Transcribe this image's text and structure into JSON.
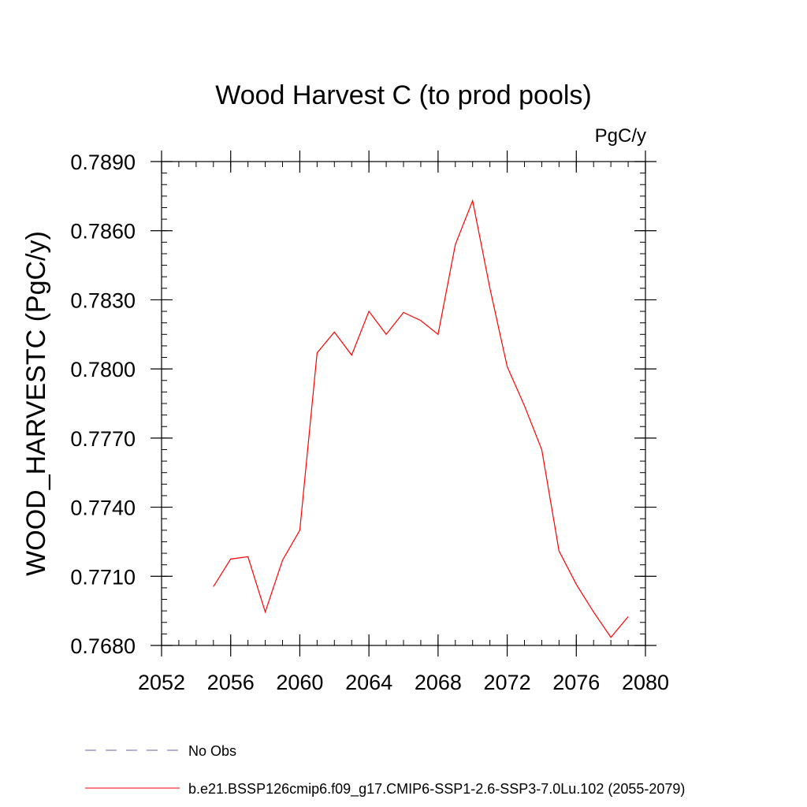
{
  "chart_data": {
    "type": "line",
    "title": "Wood Harvest C (to prod pools)",
    "units": "PgC/y",
    "xlabel": "",
    "ylabel": "WOOD_HARVESTC  (PgC/y)",
    "xlim": [
      2052,
      2080
    ],
    "ylim": [
      0.768,
      0.789
    ],
    "xticks": [
      "2052",
      "2056",
      "2060",
      "2064",
      "2068",
      "2072",
      "2076",
      "2080"
    ],
    "yticks": [
      "0.7680",
      "0.7710",
      "0.7740",
      "0.7770",
      "0.7800",
      "0.7830",
      "0.7860",
      "0.7890"
    ],
    "x_minor_step": 1,
    "y_minor_step": 0.0005,
    "grid": false,
    "legend_placement": "bottom",
    "series": [
      {
        "name": "b.e21.BSSP126cmip6.f09_g17.CMIP6-SSP1-2.6-SSP3-7.0Lu.102 (2055-2079)",
        "color": "#ff0000",
        "x": [
          2055,
          2056,
          2057,
          2058,
          2059,
          2060,
          2061,
          2062,
          2063,
          2064,
          2065,
          2066,
          2067,
          2068,
          2069,
          2070,
          2071,
          2072,
          2073,
          2074,
          2075,
          2076,
          2077,
          2078,
          2079
        ],
        "values": [
          0.77055,
          0.77175,
          0.77185,
          0.76945,
          0.7717,
          0.773,
          0.7807,
          0.7816,
          0.7806,
          0.7825,
          0.7815,
          0.78245,
          0.7821,
          0.7815,
          0.7854,
          0.7873,
          0.7835,
          0.7801,
          0.7784,
          0.7765,
          0.7721,
          0.77065,
          0.76945,
          0.76835,
          0.76925
        ]
      }
    ],
    "legend": [
      {
        "label": "No Obs",
        "color": "#6e5fb5",
        "style": "dashed"
      },
      {
        "label": "b.e21.BSSP126cmip6.f09_g17.CMIP6-SSP1-2.6-SSP3-7.0Lu.102 (2055-2079)",
        "color": "#ff0000",
        "style": "solid"
      }
    ]
  }
}
